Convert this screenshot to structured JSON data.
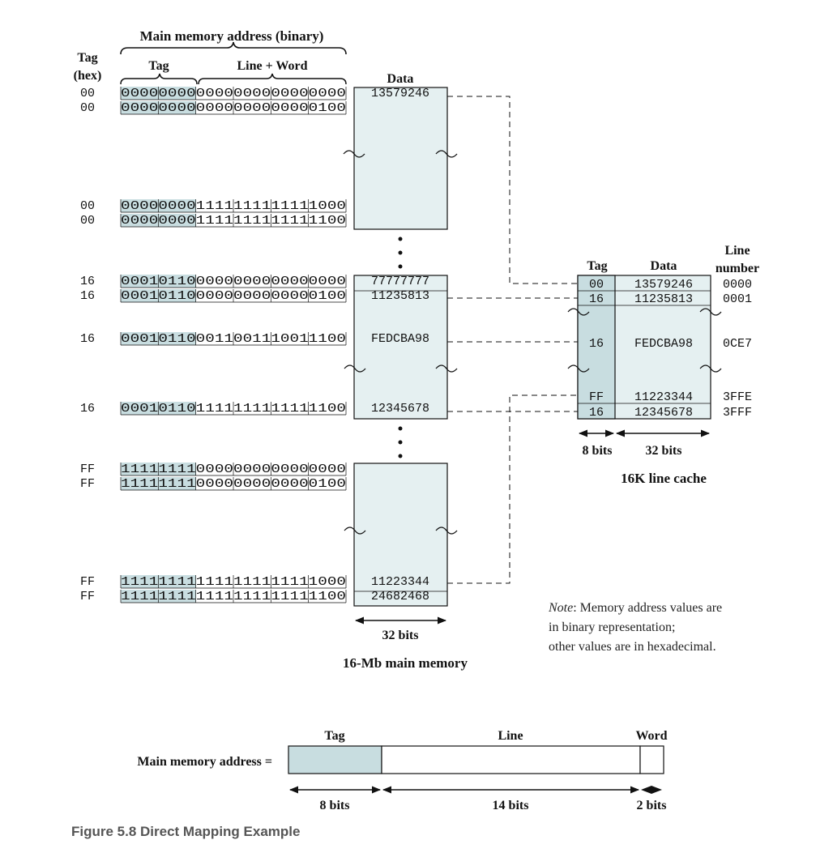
{
  "mm_header": {
    "title": "Main memory address (binary)",
    "tag_hex_label": "Tag\n(hex)",
    "tag_label": "Tag",
    "lineword_label": "Line + Word",
    "data_label": "Data"
  },
  "mm_rows": [
    {
      "hex": "00",
      "bin": "000000000000000000000000",
      "data": "13579246"
    },
    {
      "hex": "00",
      "bin": "000000000000000000000100",
      "data": ""
    },
    {
      "hex": "00",
      "bin": "000000001111111111111000",
      "data": ""
    },
    {
      "hex": "00",
      "bin": "000000001111111111111100",
      "data": ""
    },
    {
      "hex": "16",
      "bin": "000101100000000000000000",
      "data": "77777777"
    },
    {
      "hex": "16",
      "bin": "000101100000000000000100",
      "data": "11235813"
    },
    {
      "hex": "16",
      "bin": "000101100011001110011100",
      "data": "FEDCBA98"
    },
    {
      "hex": "16",
      "bin": "000101101111111111111100",
      "data": "12345678"
    },
    {
      "hex": "FF",
      "bin": "111111110000000000000000",
      "data": ""
    },
    {
      "hex": "FF",
      "bin": "111111110000000000000100",
      "data": ""
    },
    {
      "hex": "FF",
      "bin": "111111111111111111111000",
      "data": "11223344"
    },
    {
      "hex": "FF",
      "bin": "111111111111111111111100",
      "data": "24682468"
    }
  ],
  "mm_width_label": "32 bits",
  "mm_title": "16-Mb main memory",
  "cache_header": {
    "tag_label": "Tag",
    "data_label": "Data",
    "line_label": "Line\nnumber"
  },
  "cache_rows": [
    {
      "tag": "00",
      "data": "13579246",
      "line": "0000"
    },
    {
      "tag": "16",
      "data": "11235813",
      "line": "0001"
    },
    {
      "tag": "16",
      "data": "FEDCBA98",
      "line": "0CE7"
    },
    {
      "tag": "FF",
      "data": "11223344",
      "line": "3FFE"
    },
    {
      "tag": "16",
      "data": "12345678",
      "line": "3FFF"
    }
  ],
  "cache_tag_bits": "8 bits",
  "cache_data_bits": "32 bits",
  "cache_title": "16K line cache",
  "note": {
    "italic_part": "Note",
    "line1": ": Memory address values are",
    "line2": "in binary representation;",
    "line3": "other values are in hexadecimal."
  },
  "address_format": {
    "prefix": "Main memory address =",
    "fields": [
      {
        "name": "Tag",
        "bits": "8 bits"
      },
      {
        "name": "Line",
        "bits": "14 bits"
      },
      {
        "name": "Word",
        "bits": "2 bits"
      }
    ]
  },
  "caption": "Figure 5.8 Direct Mapping Example",
  "colors": {
    "tag_fill": "#c8dde0",
    "box_fill": "#e5f0f1",
    "line": "#111111"
  }
}
